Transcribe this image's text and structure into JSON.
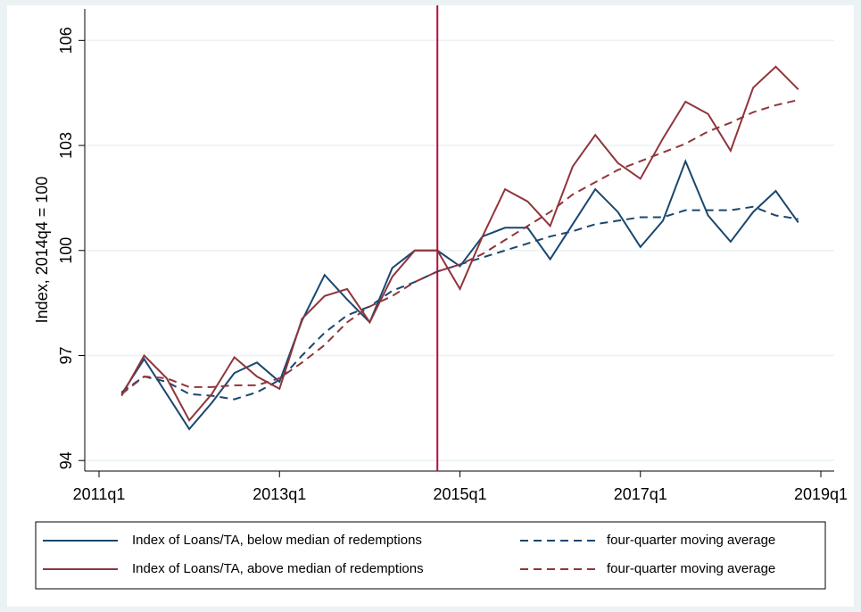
{
  "chart_data": {
    "type": "line",
    "y_label": "Index, 2014q4 = 100",
    "x": [
      "2011q2",
      "2011q3",
      "2011q4",
      "2012q1",
      "2012q2",
      "2012q3",
      "2012q4",
      "2013q1",
      "2013q2",
      "2013q3",
      "2013q4",
      "2014q1",
      "2014q2",
      "2014q3",
      "2014q4",
      "2015q1",
      "2015q2",
      "2015q3",
      "2015q4",
      "2016q1",
      "2016q2",
      "2016q3",
      "2016q4",
      "2017q1",
      "2017q2",
      "2017q3",
      "2017q4",
      "2018q1",
      "2018q2",
      "2018q3",
      "2018q4"
    ],
    "series": [
      {
        "name": "Index of Loans/TA, below median of redemptions",
        "color": "#1a476f",
        "dash": false,
        "values": [
          95.9,
          96.9,
          95.9,
          94.9,
          95.65,
          96.5,
          96.8,
          96.25,
          98.0,
          99.3,
          98.6,
          97.95,
          99.5,
          100.0,
          100.0,
          99.55,
          100.4,
          100.65,
          100.65,
          99.75,
          100.75,
          101.75,
          101.1,
          100.1,
          100.85,
          102.55,
          101.0,
          100.25,
          101.1,
          101.7,
          100.8
        ]
      },
      {
        "name": "four-quarter moving average",
        "color": "#1a476f",
        "dash": true,
        "values": [
          95.95,
          96.4,
          96.25,
          95.9,
          95.85,
          95.75,
          95.95,
          96.3,
          97.0,
          97.65,
          98.15,
          98.4,
          98.85,
          99.1,
          99.4,
          99.6,
          99.8,
          100.0,
          100.2,
          100.4,
          100.55,
          100.75,
          100.85,
          100.95,
          100.95,
          101.15,
          101.15,
          101.15,
          101.25,
          101.0,
          100.9
        ]
      },
      {
        "name": "Index of Loans/TA, above median of redemptions",
        "color": "#90353b",
        "dash": false,
        "values": [
          95.85,
          97.0,
          96.35,
          95.15,
          95.9,
          96.95,
          96.4,
          96.05,
          98.05,
          98.7,
          98.9,
          97.95,
          99.25,
          100.0,
          100.0,
          98.9,
          100.4,
          101.75,
          101.4,
          100.7,
          102.4,
          103.3,
          102.5,
          102.05,
          103.2,
          104.25,
          103.9,
          102.85,
          104.65,
          105.25,
          104.6
        ]
      },
      {
        "name": "four-quarter moving average",
        "color": "#90353b",
        "dash": true,
        "values": [
          95.9,
          96.4,
          96.35,
          96.1,
          96.1,
          96.15,
          96.15,
          96.35,
          96.8,
          97.3,
          97.95,
          98.4,
          98.7,
          99.1,
          99.4,
          99.6,
          99.9,
          100.3,
          100.7,
          101.1,
          101.6,
          101.95,
          102.3,
          102.55,
          102.8,
          103.05,
          103.4,
          103.65,
          103.95,
          104.15,
          104.3
        ]
      }
    ],
    "xlim": [
      "2011q1",
      "2019q1"
    ],
    "xticks": [
      "2011q1",
      "2013q1",
      "2015q1",
      "2017q1",
      "2019q1"
    ],
    "ylim": [
      93.7,
      106.9
    ],
    "yticks": [
      94,
      97,
      100,
      103,
      106
    ],
    "vline": "2014q4",
    "vline_color": "#b0103a",
    "grid": true,
    "legend": "bottom"
  }
}
